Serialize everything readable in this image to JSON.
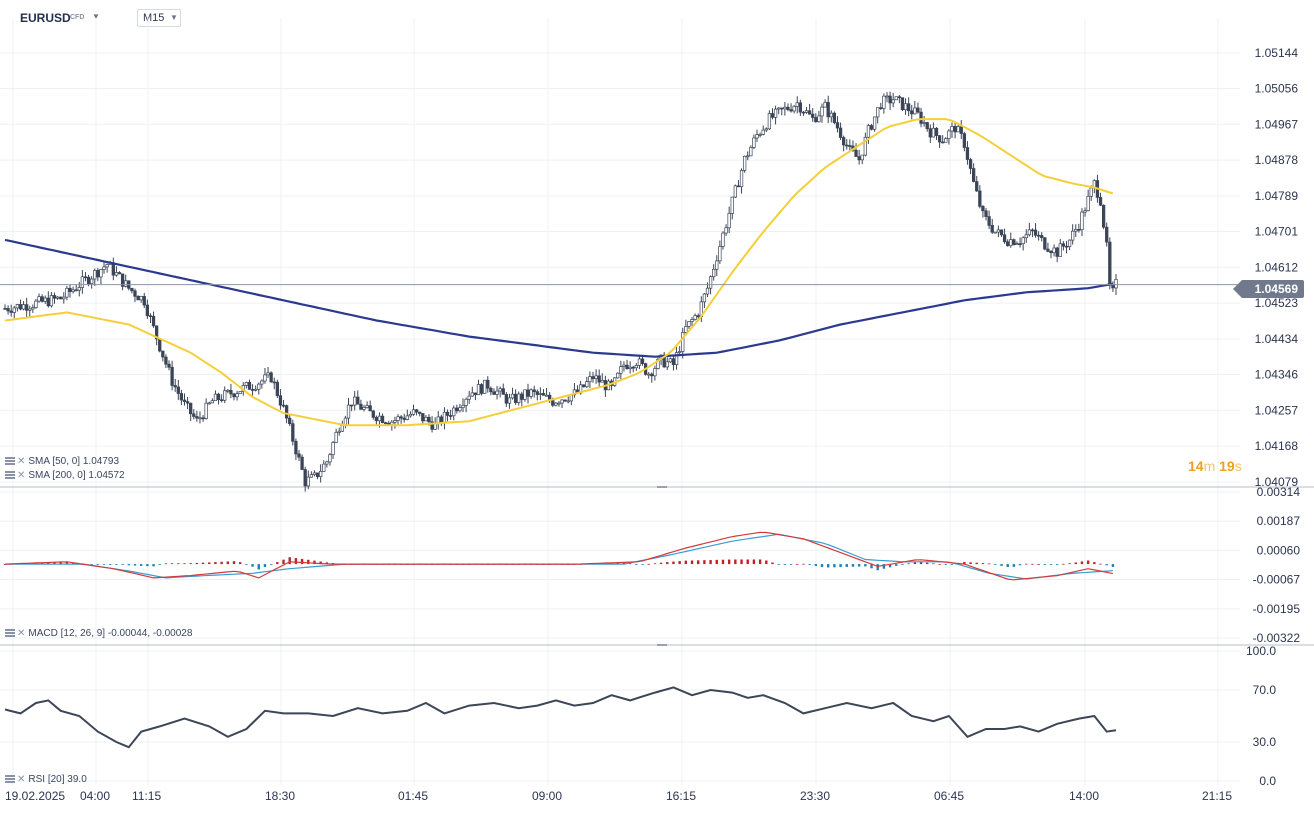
{
  "header": {
    "symbol": "EURUSD",
    "symbol_tag": "CFD",
    "timeframe": "M15"
  },
  "timer": {
    "minutes": "14",
    "min_unit": "m",
    "seconds": "19",
    "sec_unit": "s"
  },
  "indicators": {
    "sma50": "SMA [50, 0] 1.04793",
    "sma200": "SMA [200, 0] 1.04572",
    "macd": "MACD [12, 26, 9] -0.00044, -0.00028",
    "rsi": "RSI [20] 39.0"
  },
  "colors": {
    "up": "#3b4557",
    "down": "#3b4557",
    "sma50": "#f5cf3a",
    "sma200": "#2b3a8f",
    "macd_line": "#d43a3a",
    "signal_line": "#3a9bd4",
    "hist_pos": "#c0222b",
    "hist_neg": "#1f7fb8",
    "rsi_line": "#3d4657",
    "grid": "#eef0f4",
    "axis_text": "#2b3550"
  },
  "chart_data": [
    {
      "type": "candlestick",
      "title": "EURUSD",
      "timeframe": "M15",
      "x_ticks": [
        "19.02.2025",
        "04:00",
        "11:15",
        "18:30",
        "01:45",
        "09:00",
        "16:15",
        "23:30",
        "06:45",
        "14:00",
        "21:15"
      ],
      "y_ticks": [
        "1.05144",
        "1.05056",
        "1.04967",
        "1.04878",
        "1.04789",
        "1.04701",
        "1.04612",
        "1.04523",
        "1.04434",
        "1.04346",
        "1.04257",
        "1.04168",
        "1.04079"
      ],
      "ylim": [
        1.0407,
        1.0518
      ],
      "last_price": "1.04569",
      "close_path": [
        [
          0,
          1.0451
        ],
        [
          8,
          1.0452
        ],
        [
          18,
          1.04535
        ],
        [
          26,
          1.0458
        ],
        [
          33,
          1.0462
        ],
        [
          40,
          1.0456
        ],
        [
          45,
          1.0453
        ],
        [
          48,
          1.0446
        ],
        [
          54,
          1.0433
        ],
        [
          58,
          1.0427
        ],
        [
          62,
          1.0423
        ],
        [
          67,
          1.0428
        ],
        [
          73,
          1.043
        ],
        [
          80,
          1.0432
        ],
        [
          86,
          1.0434
        ],
        [
          90,
          1.0426
        ],
        [
          94,
          1.0416
        ],
        [
          97,
          1.0408
        ],
        [
          100,
          1.0409
        ],
        [
          104,
          1.0413
        ],
        [
          108,
          1.0422
        ],
        [
          112,
          1.0428
        ],
        [
          118,
          1.0425
        ],
        [
          125,
          1.0423
        ],
        [
          132,
          1.0425
        ],
        [
          139,
          1.0422
        ],
        [
          145,
          1.0426
        ],
        [
          150,
          1.043
        ],
        [
          156,
          1.0432
        ],
        [
          163,
          1.0428
        ],
        [
          170,
          1.043
        ],
        [
          177,
          1.0428
        ],
        [
          185,
          1.043
        ],
        [
          190,
          1.0434
        ],
        [
          196,
          1.0431
        ],
        [
          200,
          1.0437
        ],
        [
          204,
          1.0438
        ],
        [
          208,
          1.0435
        ],
        [
          212,
          1.0438
        ],
        [
          216,
          1.0437
        ],
        [
          220,
          1.0446
        ],
        [
          224,
          1.045
        ],
        [
          227,
          1.0456
        ],
        [
          230,
          1.0464
        ],
        [
          233,
          1.0472
        ],
        [
          236,
          1.048
        ],
        [
          239,
          1.0488
        ],
        [
          243,
          1.0494
        ],
        [
          247,
          1.0498
        ],
        [
          251,
          1.05
        ],
        [
          256,
          1.0502
        ],
        [
          261,
          1.0498
        ],
        [
          265,
          1.0501
        ],
        [
          269,
          1.0496
        ],
        [
          273,
          1.049
        ],
        [
          276,
          1.0488
        ],
        [
          279,
          1.0495
        ],
        [
          283,
          1.0502
        ],
        [
          287,
          1.0503
        ],
        [
          291,
          1.0501
        ],
        [
          295,
          1.0499
        ],
        [
          299,
          1.0495
        ],
        [
          303,
          1.0493
        ],
        [
          307,
          1.0496
        ],
        [
          310,
          1.0492
        ],
        [
          313,
          1.0482
        ],
        [
          316,
          1.0474
        ],
        [
          320,
          1.047
        ],
        [
          324,
          1.0468
        ],
        [
          328,
          1.0468
        ],
        [
          332,
          1.047
        ],
        [
          336,
          1.0467
        ],
        [
          340,
          1.0465
        ],
        [
          344,
          1.0468
        ],
        [
          347,
          1.0472
        ],
        [
          350,
          1.0478
        ],
        [
          352,
          1.0482
        ],
        [
          354,
          1.0478
        ],
        [
          356,
          1.0466
        ],
        [
          357,
          1.0456
        ],
        [
          358,
          1.04548
        ],
        [
          359,
          1.04569
        ]
      ],
      "sma50": [
        [
          0,
          1.0448
        ],
        [
          20,
          1.045
        ],
        [
          40,
          1.0447
        ],
        [
          60,
          1.044
        ],
        [
          70,
          1.0435
        ],
        [
          80,
          1.0429
        ],
        [
          90,
          1.0425
        ],
        [
          110,
          1.0422
        ],
        [
          130,
          1.0422
        ],
        [
          150,
          1.0423
        ],
        [
          165,
          1.0426
        ],
        [
          180,
          1.0429
        ],
        [
          195,
          1.0432
        ],
        [
          205,
          1.0435
        ],
        [
          215,
          1.044
        ],
        [
          225,
          1.0449
        ],
        [
          235,
          1.046
        ],
        [
          245,
          1.047
        ],
        [
          255,
          1.0479
        ],
        [
          265,
          1.0486
        ],
        [
          275,
          1.0491
        ],
        [
          285,
          1.0496
        ],
        [
          295,
          1.0498
        ],
        [
          305,
          1.0498
        ],
        [
          315,
          1.0494
        ],
        [
          325,
          1.0489
        ],
        [
          335,
          1.0484
        ],
        [
          345,
          1.0482
        ],
        [
          352,
          1.0481
        ],
        [
          359,
          1.04793
        ]
      ],
      "sma200": [
        [
          0,
          1.0468
        ],
        [
          30,
          1.0463
        ],
        [
          60,
          1.0458
        ],
        [
          90,
          1.0453
        ],
        [
          120,
          1.0448
        ],
        [
          150,
          1.0444
        ],
        [
          170,
          1.0442
        ],
        [
          190,
          1.044
        ],
        [
          210,
          1.0439
        ],
        [
          230,
          1.044
        ],
        [
          250,
          1.0443
        ],
        [
          270,
          1.0447
        ],
        [
          290,
          1.045
        ],
        [
          310,
          1.0453
        ],
        [
          330,
          1.0455
        ],
        [
          350,
          1.0456
        ],
        [
          359,
          1.04572
        ]
      ]
    },
    {
      "type": "line",
      "title": "MACD",
      "y_ticks": [
        "0.00314",
        "0.00187",
        "0.00060",
        "-0.00067",
        "-0.00195",
        "-0.00322"
      ],
      "ylim": [
        -0.00322,
        0.00314
      ],
      "series": [
        {
          "name": "MACD",
          "points": [
            [
              0,
              0.0
            ],
            [
              20,
              0.0001
            ],
            [
              35,
              -0.0002
            ],
            [
              48,
              -0.0006
            ],
            [
              60,
              -0.0005
            ],
            [
              75,
              -0.0003
            ],
            [
              82,
              -0.0006
            ],
            [
              92,
              0.0001
            ],
            [
              105,
              0.0
            ],
            [
              150,
              0.0
            ],
            [
              185,
              0.0
            ],
            [
              205,
              0.0001
            ],
            [
              220,
              0.0007
            ],
            [
              235,
              0.0012
            ],
            [
              245,
              0.0014
            ],
            [
              258,
              0.0011
            ],
            [
              272,
              0.0004
            ],
            [
              282,
              -0.0001
            ],
            [
              295,
              0.0002
            ],
            [
              310,
              0.0
            ],
            [
              325,
              -0.0007
            ],
            [
              340,
              -0.0005
            ],
            [
              350,
              -0.0002
            ],
            [
              359,
              -0.00044
            ]
          ]
        },
        {
          "name": "Signal",
          "points": [
            [
              0,
              0.0
            ],
            [
              25,
              0.0
            ],
            [
              40,
              -0.0003
            ],
            [
              52,
              -0.0006
            ],
            [
              65,
              -0.0005
            ],
            [
              80,
              -0.0004
            ],
            [
              92,
              -0.0002
            ],
            [
              110,
              0.0
            ],
            [
              150,
              0.0
            ],
            [
              200,
              0.0
            ],
            [
              215,
              0.0004
            ],
            [
              235,
              0.001
            ],
            [
              250,
              0.0013
            ],
            [
              265,
              0.0009
            ],
            [
              278,
              0.0002
            ],
            [
              290,
              0.0001
            ],
            [
              305,
              0.0001
            ],
            [
              318,
              -0.0004
            ],
            [
              330,
              -0.00065
            ],
            [
              345,
              -0.0004
            ],
            [
              359,
              -0.00028
            ]
          ]
        }
      ]
    },
    {
      "type": "line",
      "title": "RSI",
      "y_ticks": [
        "100.0",
        "70.0",
        "30.0",
        "0.0"
      ],
      "ylim": [
        0,
        100
      ],
      "series": [
        {
          "name": "RSI",
          "points": [
            [
              0,
              55
            ],
            [
              5,
              52
            ],
            [
              10,
              60
            ],
            [
              14,
              62
            ],
            [
              18,
              54
            ],
            [
              24,
              50
            ],
            [
              30,
              38
            ],
            [
              36,
              30
            ],
            [
              40,
              26
            ],
            [
              44,
              38
            ],
            [
              50,
              42
            ],
            [
              58,
              48
            ],
            [
              66,
              42
            ],
            [
              72,
              34
            ],
            [
              78,
              40
            ],
            [
              84,
              54
            ],
            [
              90,
              52
            ],
            [
              98,
              52
            ],
            [
              106,
              50
            ],
            [
              114,
              56
            ],
            [
              122,
              52
            ],
            [
              130,
              54
            ],
            [
              136,
              60
            ],
            [
              142,
              52
            ],
            [
              150,
              58
            ],
            [
              158,
              60
            ],
            [
              166,
              56
            ],
            [
              172,
              58
            ],
            [
              178,
              62
            ],
            [
              184,
              58
            ],
            [
              190,
              60
            ],
            [
              196,
              66
            ],
            [
              202,
              62
            ],
            [
              210,
              68
            ],
            [
              216,
              72
            ],
            [
              222,
              66
            ],
            [
              228,
              70
            ],
            [
              235,
              68
            ],
            [
              240,
              64
            ],
            [
              245,
              66
            ],
            [
              252,
              60
            ],
            [
              258,
              52
            ],
            [
              265,
              56
            ],
            [
              272,
              60
            ],
            [
              280,
              56
            ],
            [
              287,
              60
            ],
            [
              293,
              50
            ],
            [
              300,
              46
            ],
            [
              305,
              50
            ],
            [
              311,
              34
            ],
            [
              317,
              40
            ],
            [
              323,
              40
            ],
            [
              328,
              42
            ],
            [
              334,
              38
            ],
            [
              340,
              44
            ],
            [
              347,
              48
            ],
            [
              352,
              50
            ],
            [
              356,
              38
            ],
            [
              359,
              39
            ]
          ]
        }
      ]
    }
  ]
}
